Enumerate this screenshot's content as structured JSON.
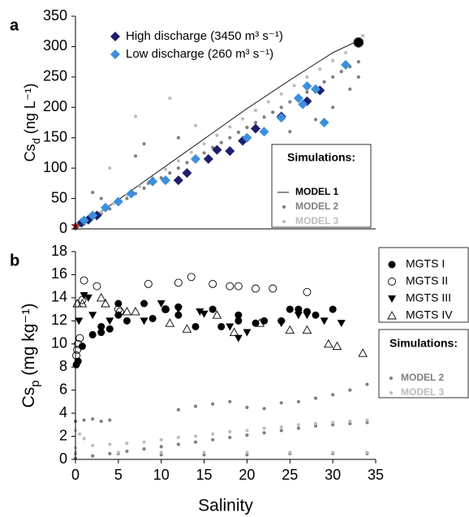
{
  "chart_data": [
    {
      "type": "scatter",
      "panel_label": "a",
      "y_label": {
        "symbol": "Cs",
        "subscript": "d",
        "unit": " (ng L⁻¹)"
      },
      "xlim": [
        0,
        35
      ],
      "ylim": [
        0,
        350
      ],
      "yticks": [
        0,
        50,
        100,
        150,
        200,
        250,
        300,
        350
      ],
      "series": [
        {
          "name": "High discharge (3450 m³ s⁻¹)",
          "color": "#1c1f6b",
          "marker": "diamond",
          "x": [
            0.7,
            1.5,
            2.5,
            12,
            13,
            15.5,
            16.5,
            18,
            19.5,
            21,
            24,
            27,
            28.5
          ],
          "values": [
            10,
            15,
            22,
            80,
            92,
            115,
            130,
            128,
            145,
            165,
            185,
            210,
            228
          ]
        },
        {
          "name": "Low discharge (260 m³ s⁻¹)",
          "color": "#3b8fdc",
          "marker": "diamond",
          "x": [
            1,
            2,
            3.5,
            5,
            6.5,
            9,
            10.5,
            14,
            20,
            22,
            24,
            26,
            26.5,
            27,
            28,
            29,
            31.5
          ],
          "values": [
            14,
            22,
            35,
            45,
            58,
            78,
            80,
            115,
            150,
            160,
            183,
            215,
            205,
            235,
            230,
            175,
            270
          ]
        }
      ],
      "markers": [
        {
          "x": 33,
          "y": 307,
          "color": "#000000",
          "marker": "big-circle"
        },
        {
          "x": 0,
          "y": 5,
          "color": "#8b1010",
          "marker": "star"
        }
      ],
      "simulations": {
        "title": "Simulations:",
        "series": [
          {
            "name": "MODEL 1",
            "color": "#000000",
            "marker": "line",
            "x": [
              0,
              5,
              10,
              15,
              20,
              25,
              30,
              33
            ],
            "values": [
              0,
              48,
              98,
              148,
              198,
              245,
              290,
              310
            ]
          },
          {
            "name": "MODEL 2",
            "color": "#7f7f7f",
            "marker": "dot",
            "x": [
              0,
              1,
              2,
              3,
              4,
              5,
              6,
              7,
              8,
              9,
              10,
              11,
              12,
              13,
              14,
              15,
              16,
              17,
              18,
              19,
              20,
              21,
              22,
              23,
              24,
              25,
              26,
              27,
              28,
              29,
              30,
              31,
              32,
              33,
              2,
              3,
              7,
              8,
              8.5,
              12,
              25,
              28,
              30,
              32,
              33
            ],
            "values": [
              0,
              8,
              17,
              25,
              33,
              42,
              50,
              58,
              67,
              75,
              84,
              92,
              100,
              109,
              117,
              125,
              134,
              142,
              150,
              159,
              167,
              175,
              184,
              192,
              200,
              209,
              217,
              225,
              234,
              242,
              250,
              259,
              267,
              275,
              60,
              50,
              120,
              140,
              75,
              150,
              160,
              180,
              200,
              230,
              250
            ]
          },
          {
            "name": "MODEL 3",
            "color": "#bdbdbd",
            "marker": "dot",
            "x": [
              0,
              1.5,
              3,
              4.5,
              6,
              7.5,
              9,
              10.5,
              12,
              13.5,
              15,
              16.5,
              18,
              19.5,
              21,
              22.5,
              24,
              25.5,
              27,
              28.5,
              30,
              31.5,
              33,
              4,
              7,
              11,
              14,
              33.5
            ],
            "values": [
              2,
              14,
              28,
              42,
              56,
              70,
              84,
              98,
              112,
              126,
              140,
              154,
              168,
              181,
              195,
              209,
              222,
              236,
              250,
              263,
              277,
              290,
              300,
              100,
              185,
              215,
              170,
              318
            ]
          }
        ]
      }
    },
    {
      "type": "scatter",
      "panel_label": "b",
      "y_label": {
        "symbol": "Cs",
        "subscript": "p",
        "unit": " (mg kg⁻¹)"
      },
      "x_label": "Salinity",
      "xlim": [
        0,
        35
      ],
      "xticks": [
        0,
        5,
        10,
        15,
        20,
        25,
        30,
        35
      ],
      "ylim": [
        0,
        18
      ],
      "yticks": [
        0,
        2,
        4,
        6,
        8,
        10,
        12,
        14,
        16,
        18
      ],
      "series": [
        {
          "name": "MGTS I",
          "color": "#000000",
          "marker": "circle",
          "x": [
            0.1,
            0.3,
            0.8,
            2,
            3,
            3,
            4,
            5,
            5,
            6,
            8,
            9,
            10.5,
            12,
            12,
            14,
            16,
            17,
            19,
            19,
            21,
            22,
            24,
            25,
            26,
            27,
            28,
            30
          ],
          "values": [
            8.2,
            8.5,
            9.8,
            10.8,
            11,
            11.5,
            11.3,
            12.5,
            13.5,
            12,
            13.5,
            12.2,
            13,
            13.2,
            12.5,
            11.5,
            13,
            11.5,
            12,
            12.5,
            11.8,
            12,
            12,
            13,
            13,
            12.8,
            12.5,
            13
          ]
        },
        {
          "name": "MGTS II",
          "color": "#000000",
          "marker": "circle-open",
          "x": [
            0.1,
            0.2,
            0.3,
            0.5,
            0.8,
            1,
            2.5,
            5,
            5.2,
            8.5,
            10.5,
            12,
            13.5,
            16,
            18,
            19,
            21,
            23,
            27
          ],
          "values": [
            9,
            9.5,
            10,
            10.5,
            13.8,
            15.5,
            15,
            13,
            12.8,
            15.2,
            13,
            15.3,
            15.8,
            15.2,
            15,
            15,
            14.8,
            14.8,
            14.5
          ]
        },
        {
          "name": "MGTS III",
          "color": "#000000",
          "marker": "triangle-down",
          "x": [
            0.4,
            1,
            1.5,
            2,
            4,
            8,
            10,
            12,
            14.5,
            15,
            18,
            19,
            20,
            24,
            26,
            27,
            29,
            31
          ],
          "values": [
            12,
            14.2,
            14,
            12.5,
            12,
            12,
            13.5,
            13,
            12.8,
            12.6,
            11.5,
            10.5,
            11,
            11.8,
            12.5,
            12.5,
            12,
            11.8
          ]
        },
        {
          "name": "MGTS IV",
          "color": "#000000",
          "marker": "triangle-up",
          "x": [
            0.2,
            0.8,
            3,
            3.5,
            6,
            7,
            11,
            13,
            16.5,
            18.5,
            21.5,
            25,
            27,
            29.5,
            30.5,
            33.5
          ],
          "values": [
            13.5,
            13.5,
            14,
            13.5,
            12.8,
            12.8,
            11.8,
            11.3,
            12.5,
            11,
            11.8,
            11.2,
            11.2,
            10,
            9.8,
            9.2
          ]
        }
      ],
      "simulations": {
        "title": "Simulations:",
        "series": [
          {
            "name": "MODEL 2",
            "color": "#7f7f7f",
            "marker": "dot",
            "x": [
              0,
              2,
              4,
              6,
              8,
              10,
              12,
              14,
              16,
              18,
              20,
              22,
              24,
              26,
              28,
              30,
              32,
              34,
              0,
              1,
              2,
              3,
              4,
              12,
              14,
              16,
              18,
              20,
              22,
              24,
              26,
              28,
              30,
              32,
              34,
              0,
              5,
              10,
              15,
              20,
              25,
              30,
              34
            ],
            "values": [
              0.1,
              0.3,
              0.5,
              0.7,
              0.9,
              1.1,
              1.3,
              1.5,
              1.7,
              1.9,
              2.1,
              2.3,
              2.5,
              2.7,
              2.9,
              3.0,
              3.1,
              3.2,
              3.3,
              3.4,
              3.5,
              3.3,
              3.4,
              4.3,
              4.6,
              4.8,
              5.0,
              4.5,
              4.4,
              4.9,
              5.0,
              5.3,
              5.6,
              6.0,
              6.5,
              0.5,
              0.5,
              0.4,
              0.4,
              0.4,
              0.5,
              0.5,
              0.5
            ]
          },
          {
            "name": "MODEL 3",
            "color": "#bdbdbd",
            "marker": "dot",
            "x": [
              0,
              2,
              4,
              6,
              8,
              10,
              12,
              14,
              16,
              18,
              20,
              22,
              24,
              26,
              28,
              30,
              32,
              34,
              0,
              5,
              10,
              15,
              20,
              25,
              30,
              34,
              0,
              0.5,
              1
            ],
            "values": [
              1.0,
              1.2,
              1.3,
              1.4,
              1.5,
              1.7,
              1.9,
              2.0,
              2.2,
              2.4,
              2.5,
              2.7,
              2.8,
              3.0,
              3.1,
              3.2,
              3.3,
              3.4,
              0.6,
              0.6,
              0.6,
              0.6,
              0.6,
              0.6,
              0.6,
              0.6,
              2.5,
              2.2,
              1.8
            ]
          }
        ]
      }
    }
  ]
}
